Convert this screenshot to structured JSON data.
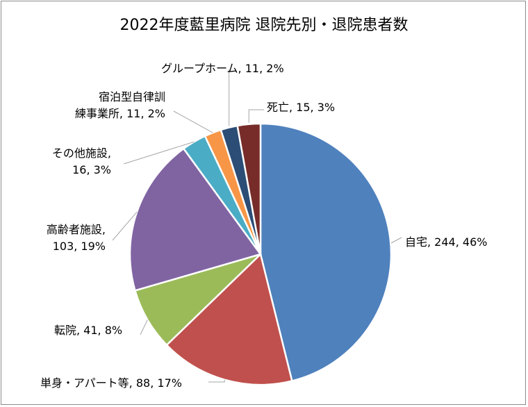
{
  "chart_data": {
    "type": "pie",
    "title": "2022年度藍里病院 退院先別・退院患者数",
    "slices": [
      {
        "label": "自宅",
        "value": 244,
        "percent": "46%",
        "color": "#4f81bd"
      },
      {
        "label": "単身・アパート等",
        "value": 88,
        "percent": "17%",
        "color": "#c0504d"
      },
      {
        "label": "転院",
        "value": 41,
        "percent": "8%",
        "color": "#9bbb59"
      },
      {
        "label": "高齢者施設",
        "value": 103,
        "percent": "19%",
        "color": "#8064a2"
      },
      {
        "label": "その他施設",
        "value": 16,
        "percent": "3%",
        "color": "#4bacc6"
      },
      {
        "label": "宿泊型自律訓練事業所",
        "value": 11,
        "percent": "2%",
        "color": "#f79646"
      },
      {
        "label": "グループホーム",
        "value": 11,
        "percent": "2%",
        "color": "#2c4d75"
      },
      {
        "label": "死亡",
        "value": 15,
        "percent": "3%",
        "color": "#772c2a"
      }
    ],
    "legend": "none",
    "data_labels": "outside with leader lines"
  }
}
